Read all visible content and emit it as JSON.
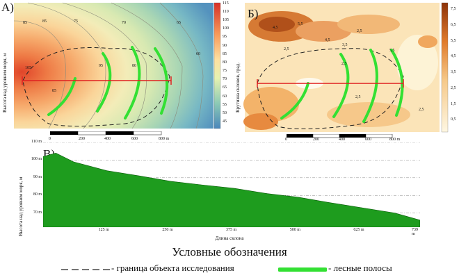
{
  "panel_a": {
    "letter": "А)",
    "ylabel": "Высота над уровнем моря, м",
    "colorbar_ticks": [
      "115",
      "110",
      "105",
      "100",
      "95",
      "90",
      "85",
      "80",
      "75",
      "70",
      "65",
      "60",
      "55",
      "50",
      "45"
    ],
    "contour_labels": [
      "85",
      "85",
      "75",
      "70",
      "65",
      "60",
      "95",
      "80",
      "85",
      "105"
    ],
    "scalebar": {
      "ticks": [
        "0",
        "200",
        "400",
        "600",
        "800 m"
      ]
    },
    "colors": {
      "warm": "#e8643a",
      "mid": "#f4d49a",
      "cool": "#5f9fc8"
    }
  },
  "panel_b": {
    "letter": "Б)",
    "ylabel": "Крутизна склонов, град.",
    "colorbar_ticks": [
      "7,5",
      "6,5",
      "5,5",
      "4,5",
      "3,5",
      "2,5",
      "1,5",
      "0,5"
    ],
    "contour_labels": [
      "4,5",
      "5,5",
      "2,5",
      "4,5",
      "3,5",
      "2,5",
      "2,5",
      "2,5",
      "5,5",
      "2,5"
    ],
    "scalebar": {
      "ticks": [
        "0",
        "200",
        "400",
        "600",
        "800 m"
      ]
    },
    "colors": {
      "high": "#a8420f",
      "mid": "#f3b66c",
      "low": "#fdf3d6"
    }
  },
  "panel_c": {
    "letter": "В)",
    "ylabel": "Высота над уровнем моря, м",
    "xlabel": "Длина склона",
    "yticks": [
      "110 m",
      "100 m",
      "90 m",
      "80 m",
      "70 m"
    ],
    "xticks": [
      "125 m",
      "250 m",
      "375 m",
      "500 m",
      "625 m",
      "739 m"
    ],
    "fill_color": "#1e9c1e"
  },
  "chart_data": {
    "type": "area",
    "title": "",
    "xlabel": "Длина склона",
    "ylabel": "Высота над уровнем моря, м",
    "ylim": [
      62,
      110
    ],
    "xlim": [
      0,
      739
    ],
    "x": [
      0,
      25,
      60,
      125,
      190,
      250,
      310,
      375,
      440,
      500,
      560,
      625,
      690,
      739
    ],
    "series": [
      {
        "values": [
          102,
          104,
          99,
          94,
          91,
          88,
          86,
          84,
          81,
          79,
          76,
          73,
          70,
          66
        ]
      }
    ]
  },
  "legend": {
    "title": "Условные обозначения",
    "boundary": "- граница объекта исследования",
    "forest": "- лесные полосы",
    "forest_color": "#33e033"
  }
}
